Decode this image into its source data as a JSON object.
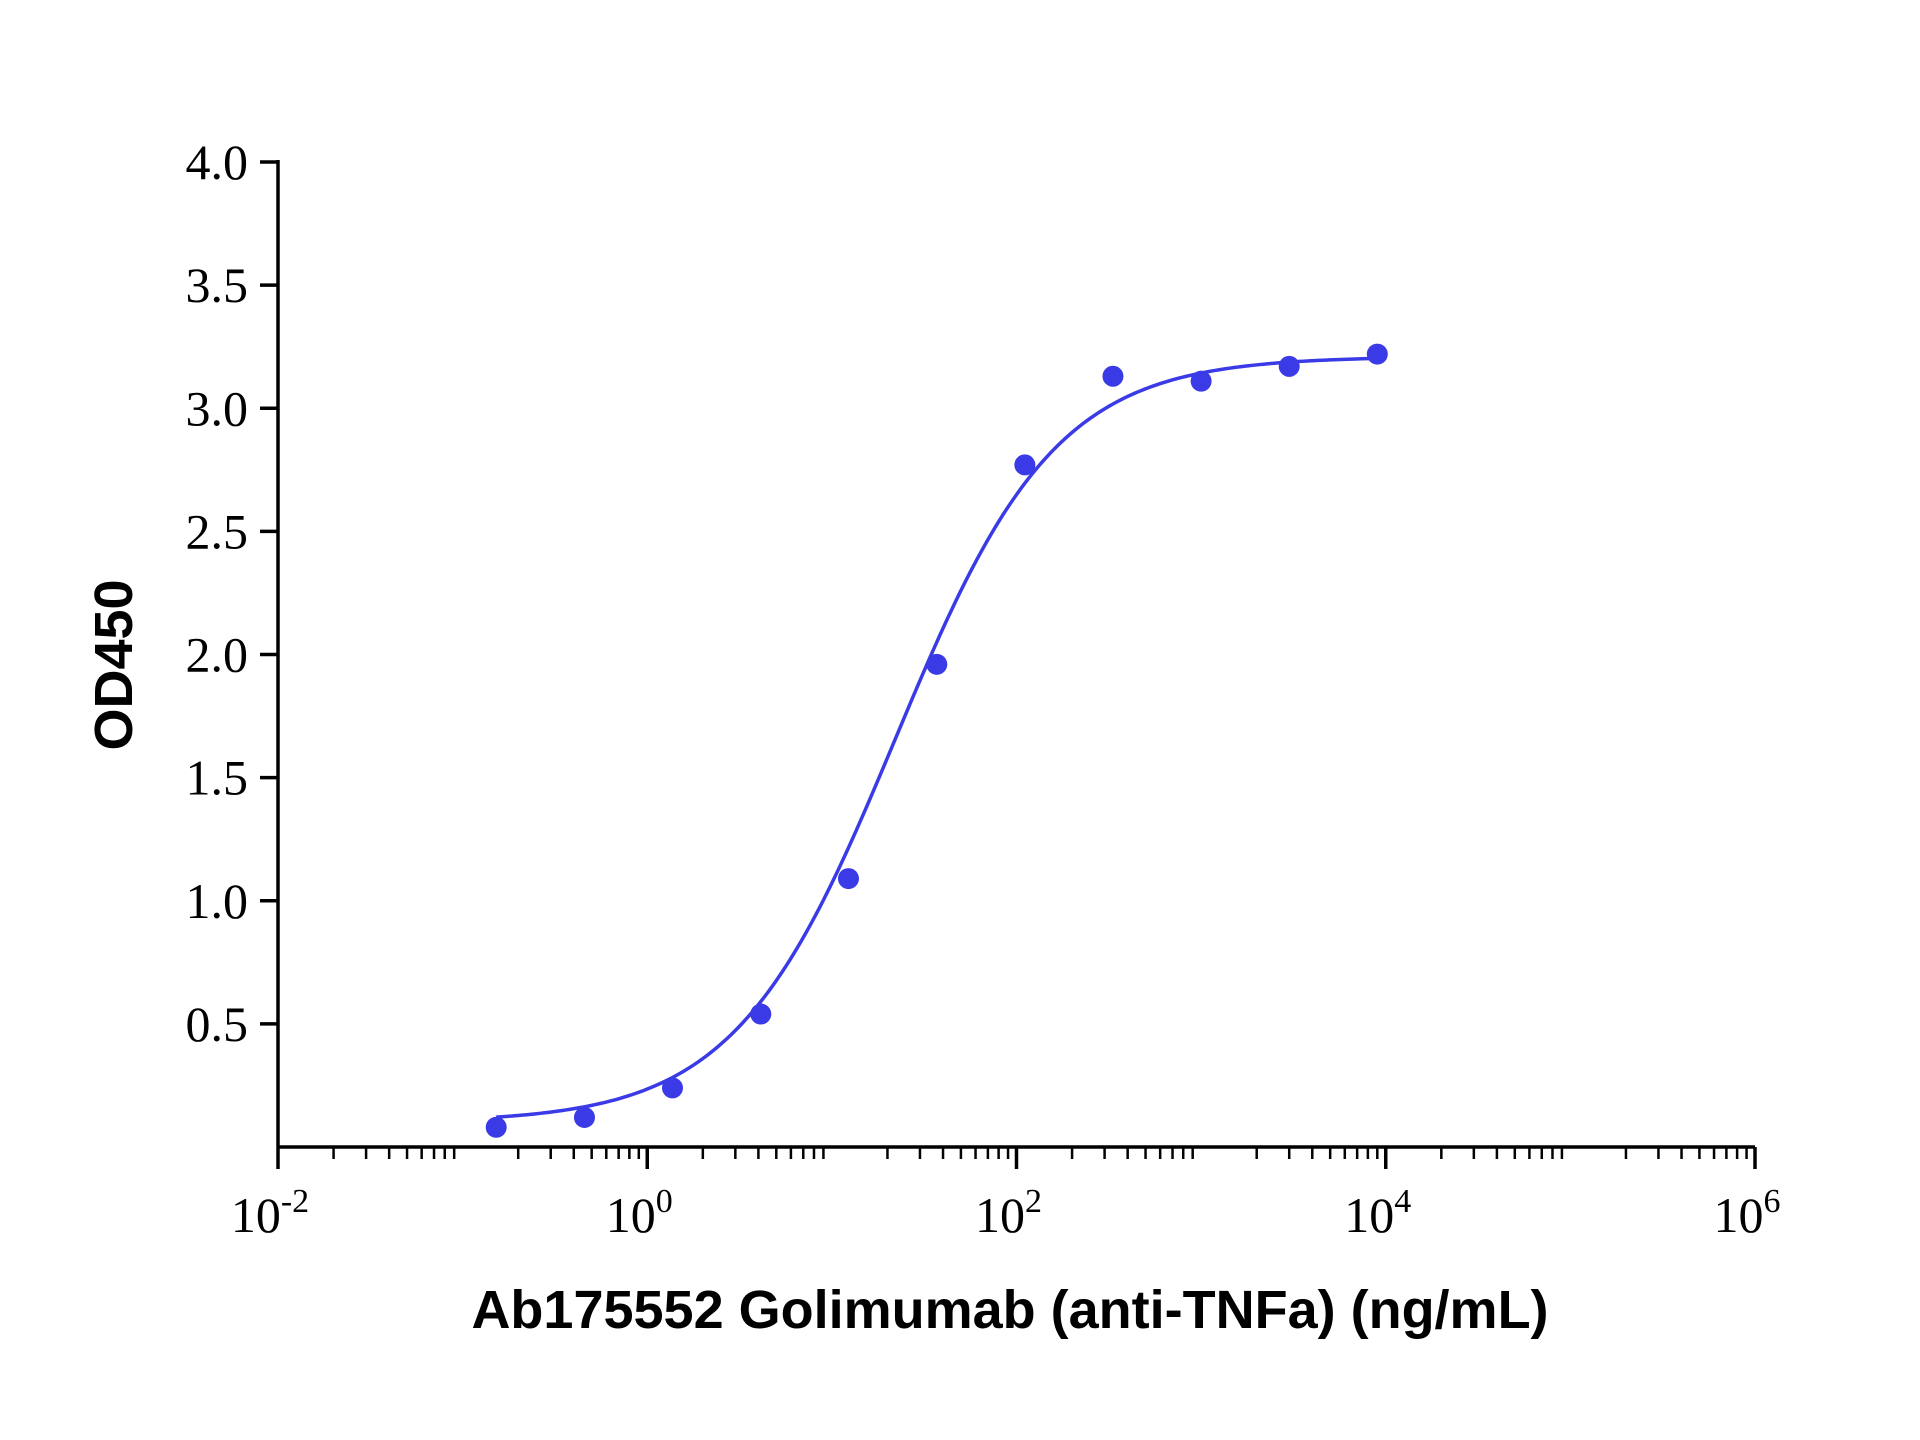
{
  "chart_data": {
    "type": "scatter",
    "title": "",
    "xlabel": "Ab175552 Golimumab (anti-TNFa) (ng/mL)",
    "ylabel": "OD450",
    "x_scale": "log",
    "xlim": [
      0.01,
      1000000
    ],
    "ylim": [
      0,
      4.0
    ],
    "x_ticks": [
      {
        "value": 0.01,
        "base": "10",
        "exp": "-2"
      },
      {
        "value": 1,
        "base": "10",
        "exp": "0"
      },
      {
        "value": 100,
        "base": "10",
        "exp": "2"
      },
      {
        "value": 10000,
        "base": "10",
        "exp": "4"
      },
      {
        "value": 1000000,
        "base": "10",
        "exp": "6"
      }
    ],
    "y_ticks": [
      {
        "value": 0.5,
        "label": "0.5"
      },
      {
        "value": 1.0,
        "label": "1.0"
      },
      {
        "value": 1.5,
        "label": "1.5"
      },
      {
        "value": 2.0,
        "label": "2.0"
      },
      {
        "value": 2.5,
        "label": "2.5"
      },
      {
        "value": 3.0,
        "label": "3.0"
      },
      {
        "value": 3.5,
        "label": "3.5"
      },
      {
        "value": 4.0,
        "label": "4.0"
      }
    ],
    "grid": false,
    "series": [
      {
        "color": "#3a3ae6",
        "points": [
          {
            "x": 0.152,
            "y": 0.08
          },
          {
            "x": 0.457,
            "y": 0.12
          },
          {
            "x": 1.37,
            "y": 0.24
          },
          {
            "x": 4.12,
            "y": 0.54
          },
          {
            "x": 12.3,
            "y": 1.09
          },
          {
            "x": 37.0,
            "y": 1.96
          },
          {
            "x": 111,
            "y": 2.77
          },
          {
            "x": 333,
            "y": 3.13
          },
          {
            "x": 1000,
            "y": 3.11
          },
          {
            "x": 3000,
            "y": 3.17
          },
          {
            "x": 9000,
            "y": 3.22
          }
        ],
        "fit_curve": {
          "model": "4PL",
          "bottom": 0.1,
          "top": 3.21,
          "ec50": 22,
          "hill": 1.0,
          "x_range": [
            0.152,
            9000
          ]
        }
      }
    ]
  }
}
